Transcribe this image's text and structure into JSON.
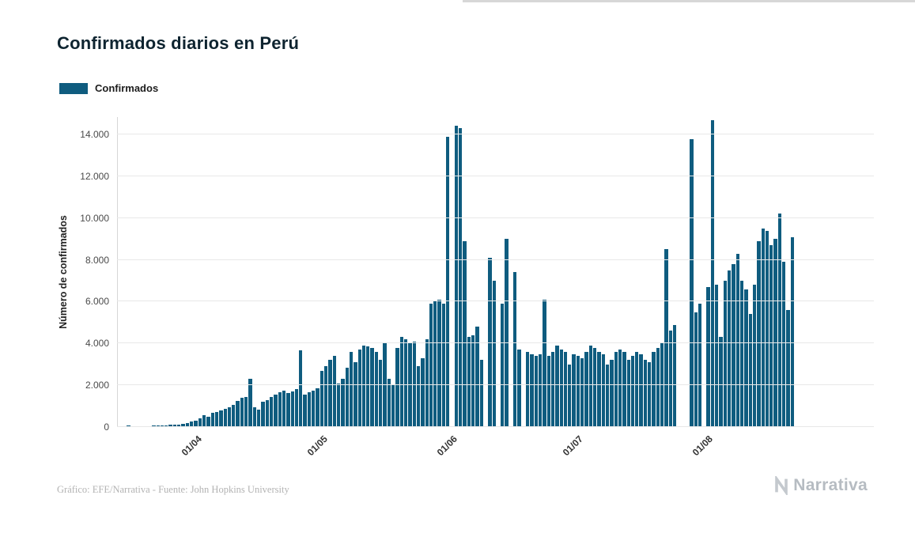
{
  "page": {
    "background": "#ffffff"
  },
  "header": {
    "title": "Confirmados diarios en Perú"
  },
  "legend": {
    "items": [
      {
        "label": "Confirmados",
        "color": "#0f5c7f"
      }
    ]
  },
  "footer": {
    "credit": "Gráfico: EFE/Narrativa - Fuente: John Hopkins University",
    "brand": "Narrativa"
  },
  "colors": {
    "bar": "#0f5c7f",
    "grid": "#e8e8e8",
    "axis": "#d6d6d6",
    "title": "#0e2430"
  },
  "chart_data": {
    "type": "bar",
    "title": "Confirmados diarios en Perú",
    "xlabel": "",
    "ylabel": "Número de confirmados",
    "ylim": [
      0,
      14000
    ],
    "grid": true,
    "legend_position": "top-left",
    "y_tick_values": [
      0,
      2000,
      4000,
      6000,
      8000,
      10000,
      12000,
      14000
    ],
    "y_tick_labels": [
      "0",
      "2.000",
      "4.000",
      "6.000",
      "8.000",
      "10.000",
      "12.000",
      "14.000"
    ],
    "x_tick_labels": [
      "01/04",
      "01/05",
      "01/06",
      "01/07",
      "01/08"
    ],
    "x_tick_indices": [
      17,
      47,
      78,
      108,
      139
    ],
    "series": [
      {
        "name": "Confirmados",
        "color": "#0f5c7f",
        "values": [
          40,
          86,
          30,
          28,
          35,
          42,
          50,
          58,
          65,
          74,
          92,
          110,
          98,
          133,
          155,
          184,
          250,
          320,
          420,
          583,
          510,
          671,
          738,
          796,
          852,
          954,
          1065,
          1240,
          1388,
          1450,
          2327,
          954,
          845,
          1208,
          1305,
          1450,
          1553,
          1656,
          1750,
          1610,
          1715,
          1820,
          3683,
          1550,
          1660,
          1760,
          1870,
          2684,
          2929,
          3200,
          3400,
          2100,
          2300,
          2850,
          3600,
          3100,
          3700,
          3900,
          3850,
          3800,
          3600,
          3200,
          4046,
          2300,
          2050,
          3800,
          4300,
          4200,
          4000,
          4100,
          2900,
          3300,
          4200,
          5900,
          6050,
          6100,
          5900,
          13870,
          0,
          14400,
          14300,
          8900,
          4300,
          4400,
          4800,
          3200,
          0,
          8100,
          7000,
          0,
          5900,
          9000,
          0,
          7400,
          3700,
          0,
          3600,
          3500,
          3400,
          3500,
          6100,
          3400,
          3600,
          3900,
          3700,
          3600,
          3000,
          3500,
          3400,
          3300,
          3600,
          3900,
          3800,
          3600,
          3500,
          3000,
          3200,
          3600,
          3700,
          3600,
          3200,
          3400,
          3600,
          3500,
          3200,
          3100,
          3600,
          3800,
          4000,
          8500,
          4600,
          4900,
          0,
          0,
          0,
          13756,
          5500,
          5900,
          0,
          6700,
          14700,
          6800,
          4300,
          7000,
          7500,
          7800,
          8300,
          7000,
          6600,
          5400,
          6800,
          8900,
          9500,
          9400,
          8700,
          9000,
          10200,
          7900,
          5600,
          9100
        ]
      }
    ]
  }
}
